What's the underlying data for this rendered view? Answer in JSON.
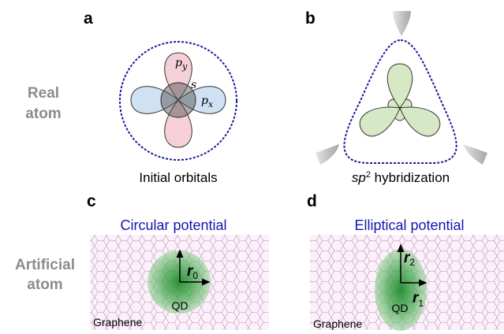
{
  "panels": {
    "a": {
      "label": "a",
      "caption": "Initial orbitals",
      "orbitals": {
        "py": "p",
        "py_sub": "y",
        "px": "p",
        "px_sub": "x",
        "s": "s"
      }
    },
    "b": {
      "label": "b",
      "caption_italic": "sp",
      "caption_sup": "2",
      "caption_rest": " hybridization"
    },
    "c": {
      "label": "c",
      "title": "Circular potential",
      "radius": "r",
      "radius_sub": "0",
      "dot": "QD",
      "substrate": "Graphene"
    },
    "d": {
      "label": "d",
      "title": "Elliptical potential",
      "radius_2": "r",
      "radius_2_sub": "2",
      "radius_1": "r",
      "radius_1_sub": "1",
      "dot": "QD",
      "substrate": "Graphene"
    }
  },
  "row_labels": {
    "top_line1": "Real",
    "top_line2": "atom",
    "bottom_line1": "Artificial",
    "bottom_line2": "atom"
  },
  "colors": {
    "title_blue": "#1414b4",
    "dashed_boundary": "#1a1aa0",
    "py_lobe": "#f6d0d9",
    "px_lobe": "#cfe1f2",
    "sp2_lobe": "#d6e9c6",
    "graphene_bg": "#fdf0fb",
    "graphene_lines": "#b9a9c0",
    "qd_green": "#2e9a3a"
  }
}
